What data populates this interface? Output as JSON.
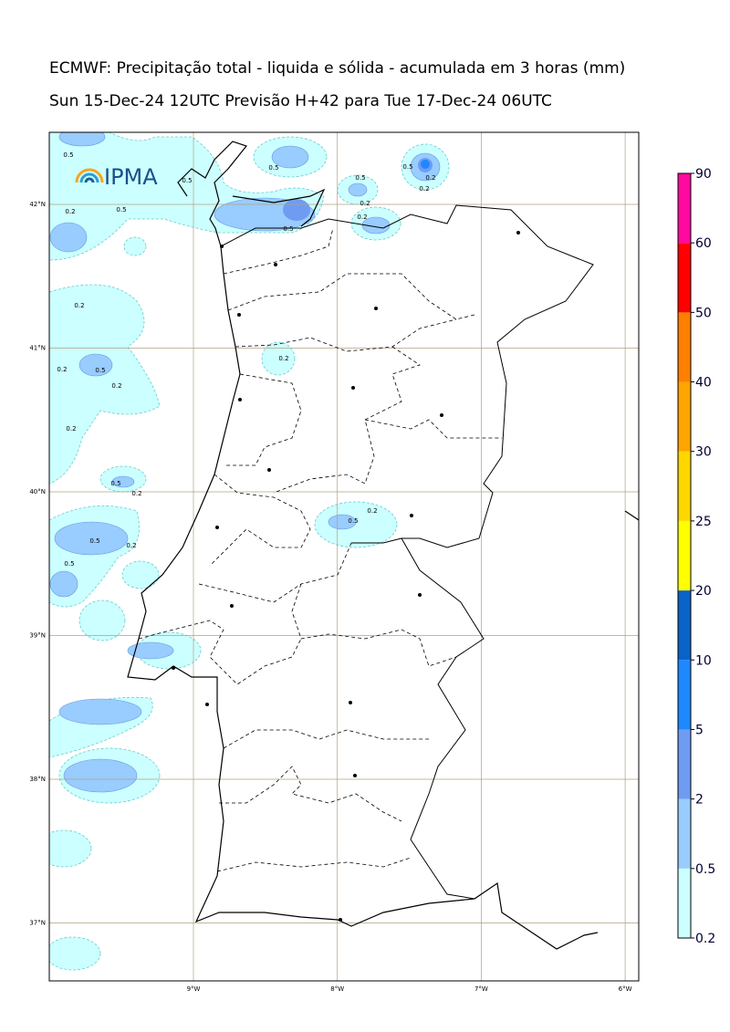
{
  "header": {
    "title": "ECMWF: Precipitação total - liquida e sólida - acumulada em 3 horas (mm)",
    "subtitle": "Sun 15-Dec-24 12UTC Previsão H+42 para Tue 17-Dec-24 06UTC"
  },
  "logo": "IPMA",
  "map": {
    "lat_labels": [
      "42°N",
      "41°N",
      "40°N",
      "39°N",
      "38°N",
      "37°N"
    ],
    "lon_labels": [
      "9°W",
      "8°W",
      "7°W",
      "6°W"
    ],
    "contour_labels": [
      "0.5",
      "0.5",
      "0.5",
      "0.5",
      "0.5",
      "0.2",
      "0.2",
      "0.2",
      "0.5",
      "0.5",
      "0.2",
      "0.2",
      "0.2",
      "0.2",
      "0.5",
      "0.2",
      "0.2",
      "0.2",
      "0.5",
      "0.2",
      "0.5",
      "0.2",
      "0.5",
      "0.5",
      "0.2"
    ]
  },
  "legend": {
    "levels": [
      0.2,
      0.5,
      2,
      5,
      10,
      20,
      25,
      30,
      40,
      50,
      60,
      90
    ],
    "colors": [
      "#ccffff",
      "#99ccff",
      "#6f9cf2",
      "#1e88ff",
      "#0a63c9",
      "#ffff00",
      "#ffd700",
      "#ffa500",
      "#ff7f00",
      "#ff0000",
      "#ff0aa0"
    ]
  }
}
